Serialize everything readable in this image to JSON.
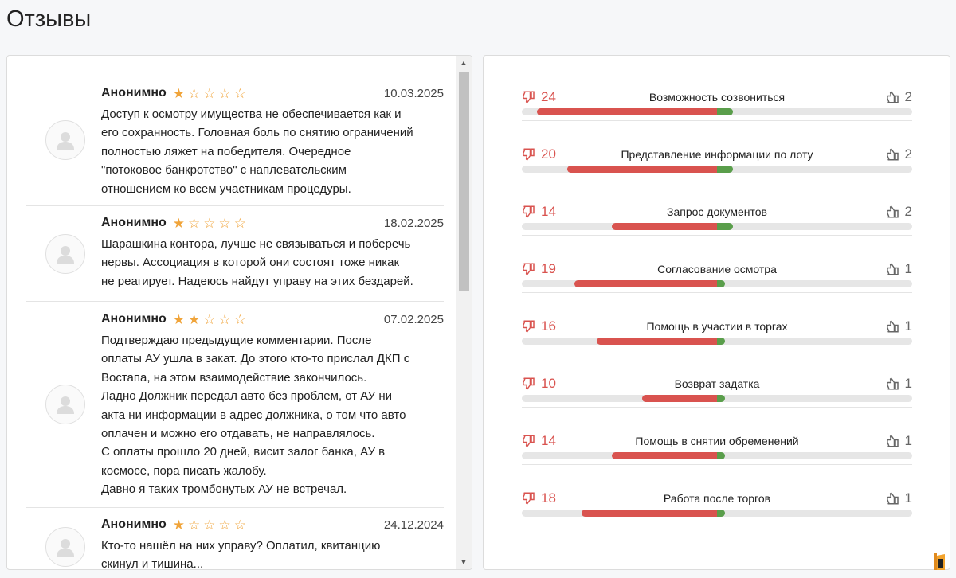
{
  "page": {
    "title": "Отзывы"
  },
  "reviews": [
    {
      "author": "Анонимно",
      "rating": 1,
      "date": "10.03.2025",
      "text": "Доступ к осмотру имущества не обеспечивается как и\nего сохранность. Головная боль по снятию ограничений\nполностью ляжет на победителя. Очередное\n\"потоковое банкротство\" с наплевательским\nотношением ко всем участникам процедуры."
    },
    {
      "author": "Анонимно",
      "rating": 1,
      "date": "18.02.2025",
      "text": "Шарашкина контора, лучше не связываться и поберечь\nнервы. Ассоциация в которой они состоят тоже никак\nне реагирует. Надеюсь найдут управу на этих бездарей."
    },
    {
      "author": "Анонимно",
      "rating": 2,
      "date": "07.02.2025",
      "text": "Подтверждаю предыдущие комментарии. После\nоплаты АУ ушла в закат. До этого кто-то прислал ДКП с\nВостапа, на этом взаимодействие закончилось.\nЛадно Должник передал авто без проблем, от АУ ни\nакта ни информации в адрес должника, о том что авто\nоплачен и можно его отдавать, не направлялось.\nС оплаты прошло 20 дней, висит залог банка, АУ в\nкосмосе, пора писать жалобу.\nДавно я таких тромбонутых АУ не встречал."
    },
    {
      "author": "Анонимно",
      "rating": 1,
      "date": "24.12.2024",
      "text": "Кто-то нашёл на них управу? Оплатил, квитанцию\nскинул и тишина..."
    }
  ],
  "stats": [
    {
      "label": "Возможность созвониться",
      "negative": 24,
      "positive": 2
    },
    {
      "label": "Представление информации по лоту",
      "negative": 20,
      "positive": 2
    },
    {
      "label": "Запрос документов",
      "negative": 14,
      "positive": 2
    },
    {
      "label": "Согласование осмотра",
      "negative": 19,
      "positive": 1
    },
    {
      "label": "Помощь в участии в торгах",
      "negative": 16,
      "positive": 1
    },
    {
      "label": "Возврат задатка",
      "negative": 10,
      "positive": 1
    },
    {
      "label": "Помощь в снятии обременений",
      "negative": 14,
      "positive": 1
    },
    {
      "label": "Работа после торгов",
      "negative": 18,
      "positive": 1
    }
  ],
  "colors": {
    "negative": "#d9534f",
    "positive": "#5a9e4b",
    "star": "#f0a43a",
    "track": "#e6e6e6"
  },
  "icons": {
    "thumbs_down": "thumbs-down-icon",
    "thumbs_up": "thumbs-up-icon",
    "avatar": "user-avatar-icon",
    "star": "star-icon"
  }
}
